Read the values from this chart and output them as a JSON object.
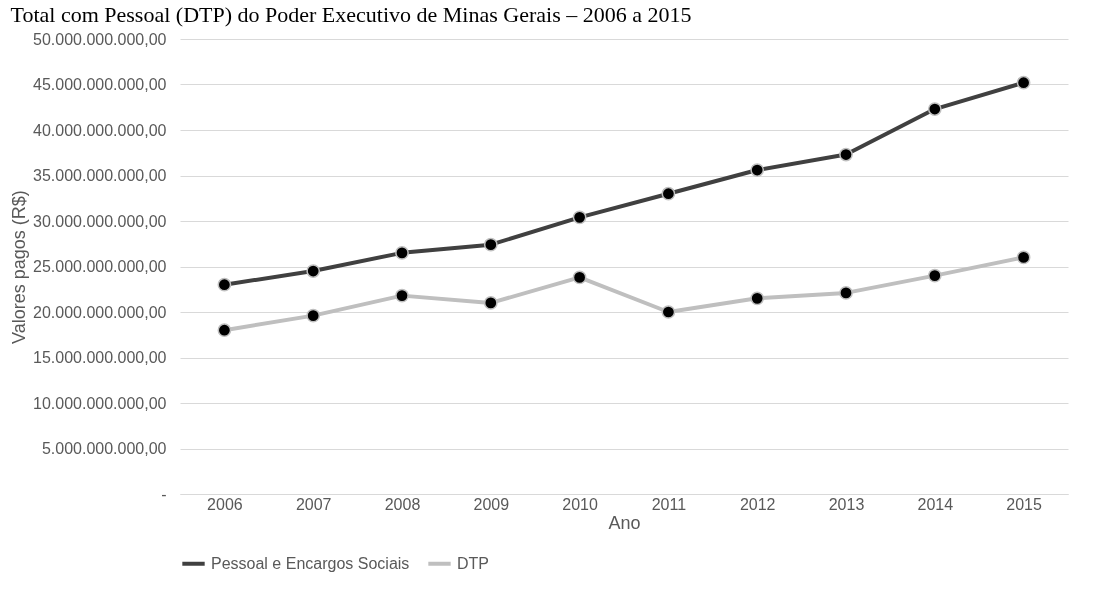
{
  "chart_data": {
    "type": "line",
    "title": "Total com Pessoal (DTP) do Poder Executivo de Minas Gerais – 2006 a 2015",
    "xlabel": "Ano",
    "ylabel": "Valores pagos (R$)",
    "categories": [
      "2006",
      "2007",
      "2008",
      "2009",
      "2010",
      "2011",
      "2012",
      "2013",
      "2014",
      "2015"
    ],
    "series": [
      {
        "name": "Pessoal e Encargos Sociais",
        "color": "#404040",
        "values": [
          23000000000.0,
          24500000000.0,
          26500000000.0,
          27400000000.0,
          30400000000.0,
          33000000000.0,
          35600000000.0,
          37300000000.0,
          42300000000.0,
          45200000000.0
        ]
      },
      {
        "name": "DTP",
        "color": "#bfbfbf",
        "values": [
          18000000000.0,
          19600000000.0,
          21800000000.0,
          21000000000.0,
          23800000000.0,
          20000000000.0,
          21500000000.0,
          22100000000.0,
          24000000000.0,
          26000000000.0
        ]
      }
    ],
    "ylim": [
      0,
      50000000000
    ],
    "yticks": [
      {
        "value": 0,
        "label": "-"
      },
      {
        "value": 5000000000,
        "label": "5.000.000.000,00"
      },
      {
        "value": 10000000000,
        "label": "10.000.000.000,00"
      },
      {
        "value": 15000000000,
        "label": "15.000.000.000,00"
      },
      {
        "value": 20000000000,
        "label": "20.000.000.000,00"
      },
      {
        "value": 25000000000,
        "label": "25.000.000.000,00"
      },
      {
        "value": 30000000000,
        "label": "30.000.000.000,00"
      },
      {
        "value": 35000000000,
        "label": "35.000.000.000,00"
      },
      {
        "value": 40000000000,
        "label": "40.000.000.000,00"
      },
      {
        "value": 45000000000,
        "label": "45.000.000.000,00"
      },
      {
        "value": 50000000000,
        "label": "50.000.000.000,00"
      }
    ],
    "grid": "y",
    "legend": "bottom",
    "marker": "circle",
    "line_style": "solid"
  }
}
